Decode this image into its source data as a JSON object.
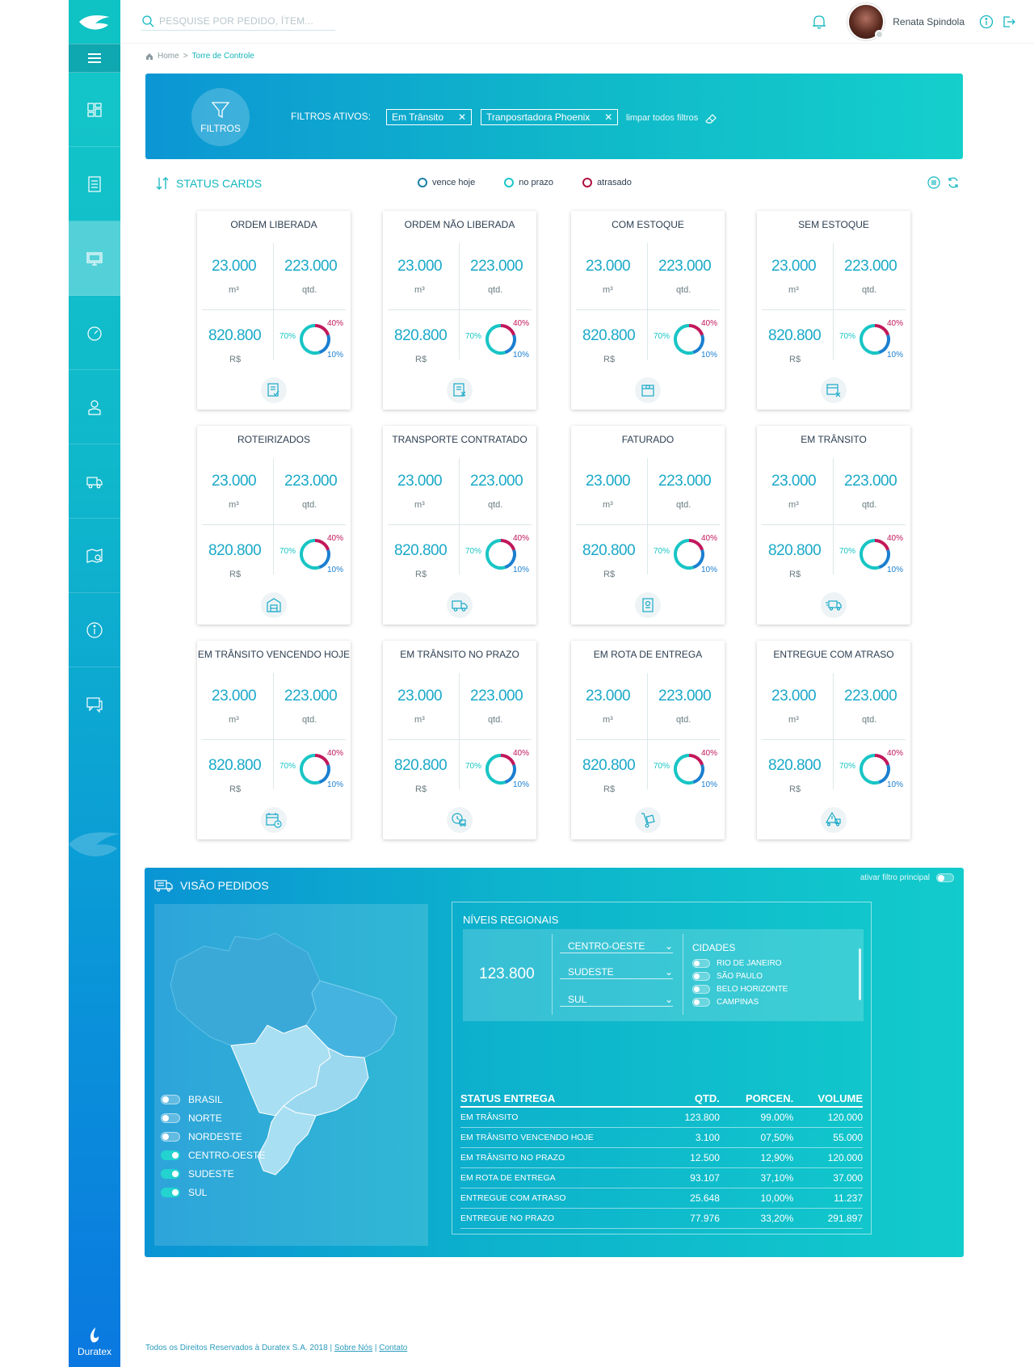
{
  "header": {
    "search_placeholder": "PESQUISE POR PEDIDO, ÍTEM...",
    "user_name": "Renata Spindola"
  },
  "breadcrumb": {
    "home": "Home",
    "separator": ">",
    "current": "Torre de Controle"
  },
  "filters": {
    "button_label": "FILTROS",
    "active_label": "FILTROS ATIVOS:",
    "chips": [
      "Em Trânsito",
      "Tranposrtadora Phoenix"
    ],
    "clear_label": "limpar todos filtros"
  },
  "status_cards": {
    "title": "STATUS CARDS",
    "legend": [
      {
        "label": "vence hoje",
        "color": "#1a7fa8"
      },
      {
        "label": "no prazo",
        "color": "#1bc6c6"
      },
      {
        "label": "atrasado",
        "color": "#b0103f"
      }
    ],
    "cards": [
      {
        "title": "ORDEM LIBERADA",
        "vol": "23.000",
        "vol_unit": "m³",
        "qty": "223.000",
        "qty_unit": "qtd.",
        "value": "820.800",
        "value_unit": "R$",
        "p_no_prazo": "70%",
        "p_atrasado": "40%",
        "p_vence_hoje": "10%",
        "icon": "document-check-icon"
      },
      {
        "title": "ORDEM NÃO LIBERADA",
        "vol": "23.000",
        "vol_unit": "m³",
        "qty": "223.000",
        "qty_unit": "qtd.",
        "value": "820.800",
        "value_unit": "R$",
        "p_no_prazo": "70%",
        "p_atrasado": "40%",
        "p_vence_hoje": "10%",
        "icon": "document-x-icon"
      },
      {
        "title": "COM ESTOQUE",
        "vol": "23.000",
        "vol_unit": "m³",
        "qty": "223.000",
        "qty_unit": "qtd.",
        "value": "820.800",
        "value_unit": "R$",
        "p_no_prazo": "70%",
        "p_atrasado": "40%",
        "p_vence_hoje": "10%",
        "icon": "box-icon"
      },
      {
        "title": "SEM ESTOQUE",
        "vol": "23.000",
        "vol_unit": "m³",
        "qty": "223.000",
        "qty_unit": "qtd.",
        "value": "820.800",
        "value_unit": "R$",
        "p_no_prazo": "70%",
        "p_atrasado": "40%",
        "p_vence_hoje": "10%",
        "icon": "box-x-icon"
      },
      {
        "title": "ROTEIRIZADOS",
        "vol": "23.000",
        "vol_unit": "m³",
        "qty": "223.000",
        "qty_unit": "qtd.",
        "value": "820.800",
        "value_unit": "R$",
        "p_no_prazo": "70%",
        "p_atrasado": "40%",
        "p_vence_hoje": "10%",
        "icon": "warehouse-icon"
      },
      {
        "title": "TRANSPORTE CONTRATADO",
        "vol": "23.000",
        "vol_unit": "m³",
        "qty": "223.000",
        "qty_unit": "qtd.",
        "value": "820.800",
        "value_unit": "R$",
        "p_no_prazo": "70%",
        "p_atrasado": "40%",
        "p_vence_hoje": "10%",
        "icon": "truck-icon"
      },
      {
        "title": "FATURADO",
        "vol": "23.000",
        "vol_unit": "m³",
        "qty": "223.000",
        "qty_unit": "qtd.",
        "value": "820.800",
        "value_unit": "R$",
        "p_no_prazo": "70%",
        "p_atrasado": "40%",
        "p_vence_hoje": "10%",
        "icon": "invoice-icon"
      },
      {
        "title": "EM TRÂNSITO",
        "vol": "23.000",
        "vol_unit": "m³",
        "qty": "223.000",
        "qty_unit": "qtd.",
        "value": "820.800",
        "value_unit": "R$",
        "p_no_prazo": "70%",
        "p_atrasado": "40%",
        "p_vence_hoje": "10%",
        "icon": "fast-truck-icon"
      },
      {
        "title": "EM TRÂNSITO VENCENDO HOJE",
        "vol": "23.000",
        "vol_unit": "m³",
        "qty": "223.000",
        "qty_unit": "qtd.",
        "value": "820.800",
        "value_unit": "R$",
        "p_no_prazo": "70%",
        "p_atrasado": "40%",
        "p_vence_hoje": "10%",
        "icon": "calendar-clock-icon"
      },
      {
        "title": "EM TRÂNSITO NO PRAZO",
        "vol": "23.000",
        "vol_unit": "m³",
        "qty": "223.000",
        "qty_unit": "qtd.",
        "value": "820.800",
        "value_unit": "R$",
        "p_no_prazo": "70%",
        "p_atrasado": "40%",
        "p_vence_hoje": "10%",
        "icon": "clock-truck-icon"
      },
      {
        "title": "EM ROTA DE ENTREGA",
        "vol": "23.000",
        "vol_unit": "m³",
        "qty": "223.000",
        "qty_unit": "qtd.",
        "value": "820.800",
        "value_unit": "R$",
        "p_no_prazo": "70%",
        "p_atrasado": "40%",
        "p_vence_hoje": "10%",
        "icon": "hand-truck-icon"
      },
      {
        "title": "ENTREGUE COM ATRASO",
        "vol": "23.000",
        "vol_unit": "m³",
        "qty": "223.000",
        "qty_unit": "qtd.",
        "value": "820.800",
        "value_unit": "R$",
        "p_no_prazo": "70%",
        "p_atrasado": "40%",
        "p_vence_hoje": "10%",
        "icon": "warning-truck-icon"
      }
    ]
  },
  "visao": {
    "title": "VISÃO PEDIDOS",
    "toggle_label": "ativar filtro principal",
    "regions": [
      {
        "label": "BRASIL",
        "on": false
      },
      {
        "label": "NORTE",
        "on": false
      },
      {
        "label": "NORDESTE",
        "on": false
      },
      {
        "label": "CENTRO-OESTE",
        "on": true
      },
      {
        "label": "SUDESTE",
        "on": true
      },
      {
        "label": "SUL",
        "on": true
      }
    ],
    "niveis_title": "NÍVEIS REGIONAIS",
    "total": "123.800",
    "selects": [
      "CENTRO-OESTE",
      "SUDESTE",
      "SUL"
    ],
    "cities_title": "CIDADES",
    "cities": [
      "RIO DE JANEIRO",
      "SÃO PAULO",
      "BELO HORIZONTE",
      "CAMPINAS"
    ],
    "table": {
      "headers": [
        "STATUS ENTREGA",
        "QTD.",
        "PORCEN.",
        "VOLUME"
      ],
      "rows": [
        [
          "EM TRÂNSITO",
          "123.800",
          "99.00%",
          "120.000"
        ],
        [
          "EM TRÂNSITO VENCENDO HOJE",
          "3.100",
          "07,50%",
          "55.000"
        ],
        [
          "EM TRÂNSITO NO PRAZO",
          "12.500",
          "12,90%",
          "120.000"
        ],
        [
          "EM ROTA DE ENTREGA",
          "93.107",
          "37,10%",
          "37.000"
        ],
        [
          "ENTREGUE COM ATRASO",
          "25.648",
          "10,00%",
          "11.237"
        ],
        [
          "ENTREGUE NO PRAZO",
          "77.976",
          "33,20%",
          "291.897"
        ]
      ]
    }
  },
  "footer": {
    "copyright": "Todos os Direitos Reservados à Duratex S.A. 2018",
    "sep": "|",
    "about": "Sobre Nós",
    "contact": "Contato"
  },
  "brand": {
    "name": "Duratex"
  },
  "colors": {
    "accent": "#13b7c0",
    "late": "#c2185b",
    "today": "#1b7fd0",
    "ontime": "#19c5c5"
  }
}
